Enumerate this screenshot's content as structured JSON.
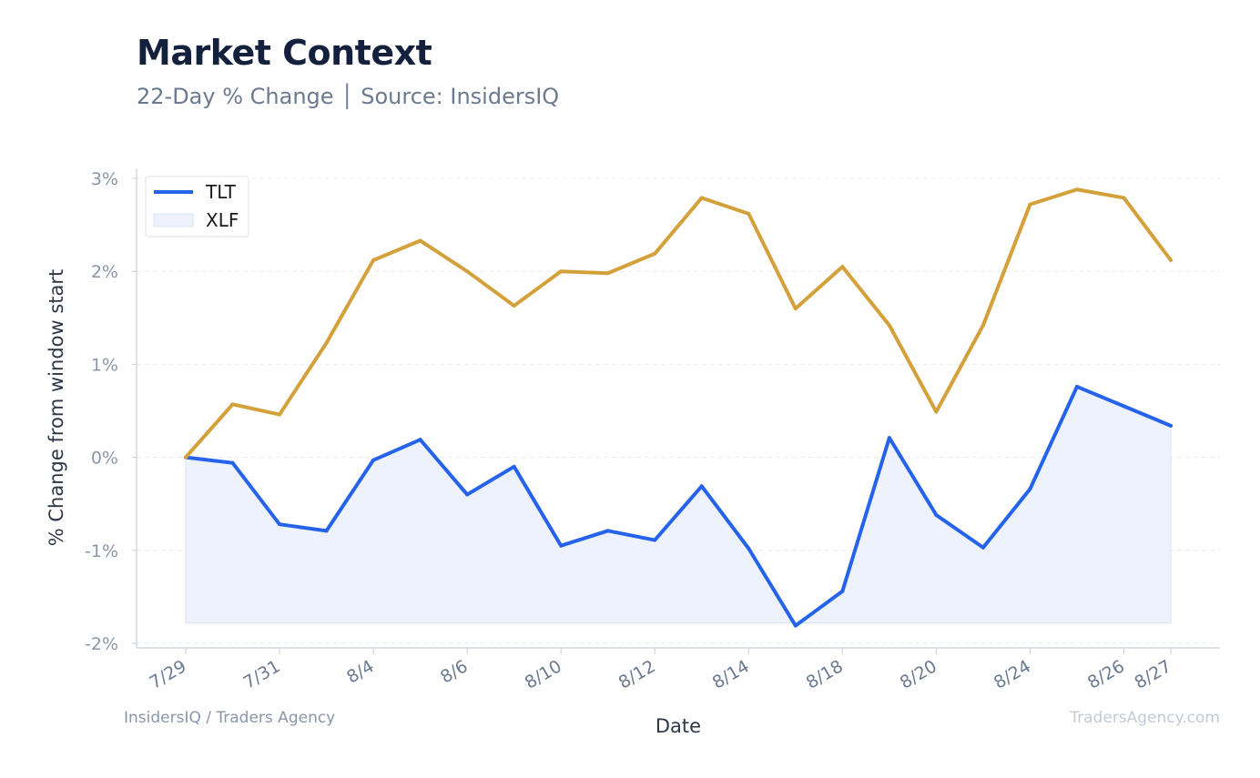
{
  "title": "Market Context",
  "subtitle": "22-Day % Change │ Source: InsidersIQ",
  "footer": {
    "left": "InsidersIQ / Traders Agency",
    "right": "TradersAgency.com"
  },
  "chart_data": {
    "type": "line",
    "title": "Market Context",
    "subtitle": "22-Day % Change │ Source: InsidersIQ",
    "xlabel": "Date",
    "ylabel": "% Change from window start",
    "ylim": [
      -2,
      3
    ],
    "yticks": [
      3,
      2,
      1,
      0,
      -1,
      -2
    ],
    "ytick_labels": [
      "3%",
      "2%",
      "1%",
      "0%",
      "-1%",
      "-2%"
    ],
    "xtick_labels": [
      {
        "index": 0,
        "label": "7/29"
      },
      {
        "index": 2,
        "label": "7/31"
      },
      {
        "index": 4,
        "label": "8/4"
      },
      {
        "index": 6,
        "label": "8/6"
      },
      {
        "index": 8,
        "label": "8/10"
      },
      {
        "index": 10,
        "label": "8/12"
      },
      {
        "index": 12,
        "label": "8/14"
      },
      {
        "index": 14,
        "label": "8/18"
      },
      {
        "index": 16,
        "label": "8/20"
      },
      {
        "index": 18,
        "label": "8/24"
      },
      {
        "index": 20,
        "label": "8/26"
      },
      {
        "index": 21,
        "label": "8/27"
      }
    ],
    "grid": true,
    "legend_position": "top-left",
    "series": [
      {
        "name": "TLT",
        "color": "#2563eb",
        "style": "line-with-fill",
        "fill_color": "#eef2fd",
        "fill_base": -1.78,
        "values": [
          0.0,
          -0.06,
          -0.72,
          -0.79,
          -0.03,
          0.19,
          -0.4,
          -0.1,
          -0.95,
          -0.79,
          -0.89,
          -0.31,
          -0.98,
          -1.81,
          -1.44,
          0.21,
          -0.62,
          -0.97,
          -0.34,
          0.76,
          0.55,
          0.34
        ]
      },
      {
        "name": "XLF",
        "color": "#d4a03a",
        "style": "line",
        "values": [
          0.0,
          0.57,
          0.46,
          1.23,
          2.12,
          2.33,
          2.0,
          1.63,
          2.0,
          1.98,
          2.19,
          2.79,
          2.62,
          1.6,
          2.05,
          1.42,
          0.49,
          1.42,
          2.72,
          2.88,
          2.79,
          2.12
        ]
      }
    ],
    "legend": [
      {
        "label": "TLT",
        "swatch": "line",
        "color": "#2563eb"
      },
      {
        "label": "XLF",
        "swatch": "fill",
        "color": "#eef2fd"
      }
    ]
  }
}
